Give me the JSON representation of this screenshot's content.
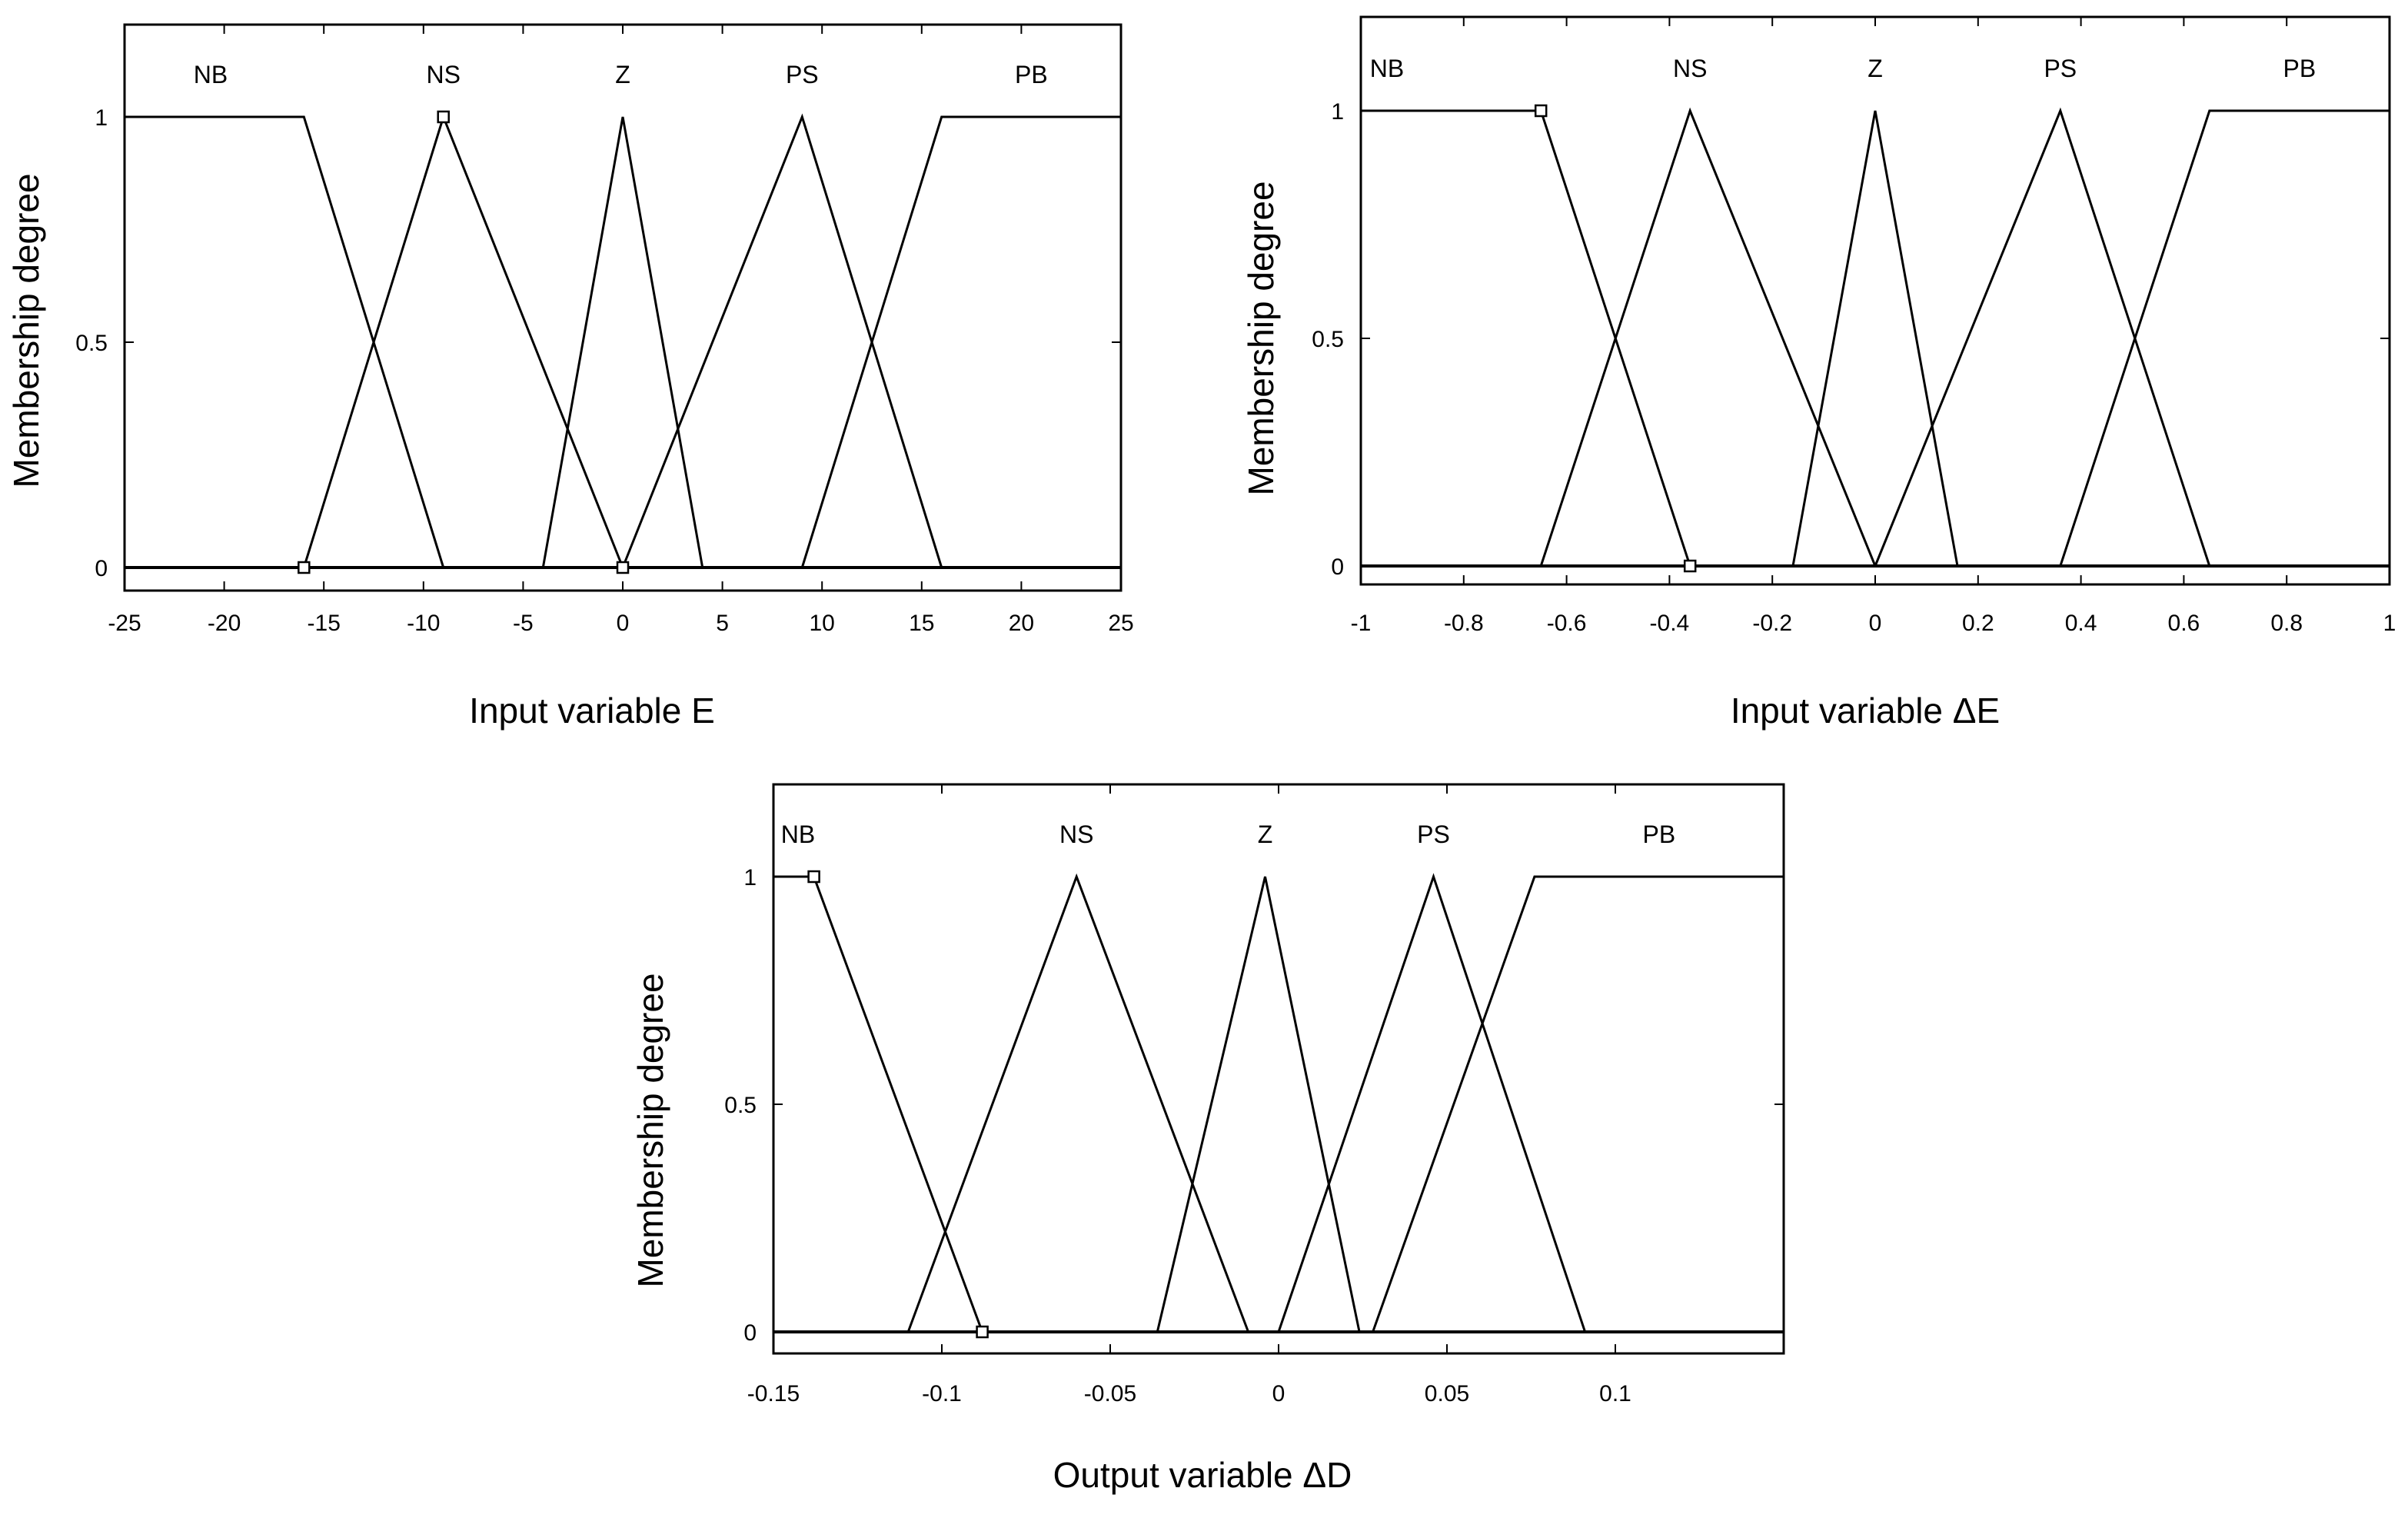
{
  "chart_data": [
    {
      "type": "line",
      "xlabel": "Input variable E",
      "ylabel": "Membership degree",
      "xlim": [
        -25,
        25
      ],
      "ylim": [
        0,
        1
      ],
      "xticks": [
        -25,
        -20,
        -15,
        -10,
        -5,
        0,
        5,
        10,
        15,
        20,
        25
      ],
      "xtick_labels": [
        "-25",
        "-20",
        "-15",
        "-10",
        "-5",
        "0",
        "5",
        "10",
        "15",
        "20",
        "25"
      ],
      "yticks": [
        0,
        0.5,
        1
      ],
      "ytick_labels": [
        "0",
        "0.5",
        "1"
      ],
      "grid": false,
      "series": [
        {
          "name": "NB",
          "x": [
            -25,
            -16,
            -9
          ],
          "y": [
            1,
            1,
            0
          ]
        },
        {
          "name": "NS",
          "x": [
            -16,
            -9,
            0
          ],
          "y": [
            0,
            1,
            0
          ]
        },
        {
          "name": "Z",
          "x": [
            -4,
            0,
            4
          ],
          "y": [
            0,
            1,
            0
          ]
        },
        {
          "name": "PS",
          "x": [
            0,
            9,
            16
          ],
          "y": [
            0,
            1,
            0
          ]
        },
        {
          "name": "PB",
          "x": [
            9,
            16,
            25
          ],
          "y": [
            0,
            1,
            1
          ]
        }
      ],
      "markers": [
        {
          "x": -9,
          "y": 1
        },
        {
          "x": -16,
          "y": 0
        },
        {
          "x": 0,
          "y": 0
        }
      ]
    },
    {
      "type": "line",
      "xlabel": "Input variable ΔE",
      "ylabel": "Membership degree",
      "xlim": [
        -1,
        1
      ],
      "ylim": [
        0,
        1
      ],
      "xticks": [
        -1,
        -0.8,
        -0.6,
        -0.4,
        -0.2,
        0,
        0.2,
        0.4,
        0.6,
        0.8,
        1
      ],
      "xtick_labels": [
        "-1",
        "-0.8",
        "-0.6",
        "-0.4",
        "-0.2",
        "0",
        "0.2",
        "0.4",
        "0.6",
        "0.8",
        "1"
      ],
      "yticks": [
        0,
        0.5,
        1
      ],
      "ytick_labels": [
        "0",
        "0.5",
        "1"
      ],
      "grid": false,
      "series": [
        {
          "name": "NB",
          "x": [
            -1,
            -0.65,
            -0.36
          ],
          "y": [
            1,
            1,
            0
          ]
        },
        {
          "name": "NS",
          "x": [
            -0.65,
            -0.36,
            0
          ],
          "y": [
            0,
            1,
            0
          ]
        },
        {
          "name": "Z",
          "x": [
            -0.16,
            0,
            0.16
          ],
          "y": [
            0,
            1,
            0
          ]
        },
        {
          "name": "PS",
          "x": [
            0,
            0.36,
            0.65
          ],
          "y": [
            0,
            1,
            0
          ]
        },
        {
          "name": "PB",
          "x": [
            0.36,
            0.65,
            1
          ],
          "y": [
            0,
            1,
            1
          ]
        }
      ],
      "markers": [
        {
          "x": -0.65,
          "y": 1
        },
        {
          "x": -0.36,
          "y": 0
        }
      ]
    },
    {
      "type": "line",
      "xlabel": "Output variable ΔD",
      "ylabel": "Membership degree",
      "xlim": [
        -0.15,
        0.15
      ],
      "ylim": [
        0,
        1
      ],
      "xticks": [
        -0.15,
        -0.1,
        -0.05,
        0,
        0.05,
        0.1
      ],
      "xtick_labels": [
        "-0.15",
        "-0.1",
        "-0.05",
        "0",
        "0.05",
        "0.1"
      ],
      "yticks": [
        0,
        0.5,
        1
      ],
      "ytick_labels": [
        "0",
        "0.5",
        "1"
      ],
      "grid": false,
      "series": [
        {
          "name": "NB",
          "x": [
            -0.15,
            -0.138,
            -0.088
          ],
          "y": [
            1,
            1,
            0
          ]
        },
        {
          "name": "NS",
          "x": [
            -0.11,
            -0.06,
            -0.009
          ],
          "y": [
            0,
            1,
            0
          ]
        },
        {
          "name": "Z",
          "x": [
            -0.036,
            -0.004,
            0.024
          ],
          "y": [
            0,
            1,
            0
          ]
        },
        {
          "name": "PS",
          "x": [
            0,
            0.046,
            0.091
          ],
          "y": [
            0,
            1,
            0
          ]
        },
        {
          "name": "PB",
          "x": [
            0.028,
            0.076,
            0.15
          ],
          "y": [
            0,
            1,
            1
          ]
        }
      ],
      "markers": [
        {
          "x": -0.138,
          "y": 1
        },
        {
          "x": -0.088,
          "y": 0
        }
      ]
    }
  ]
}
